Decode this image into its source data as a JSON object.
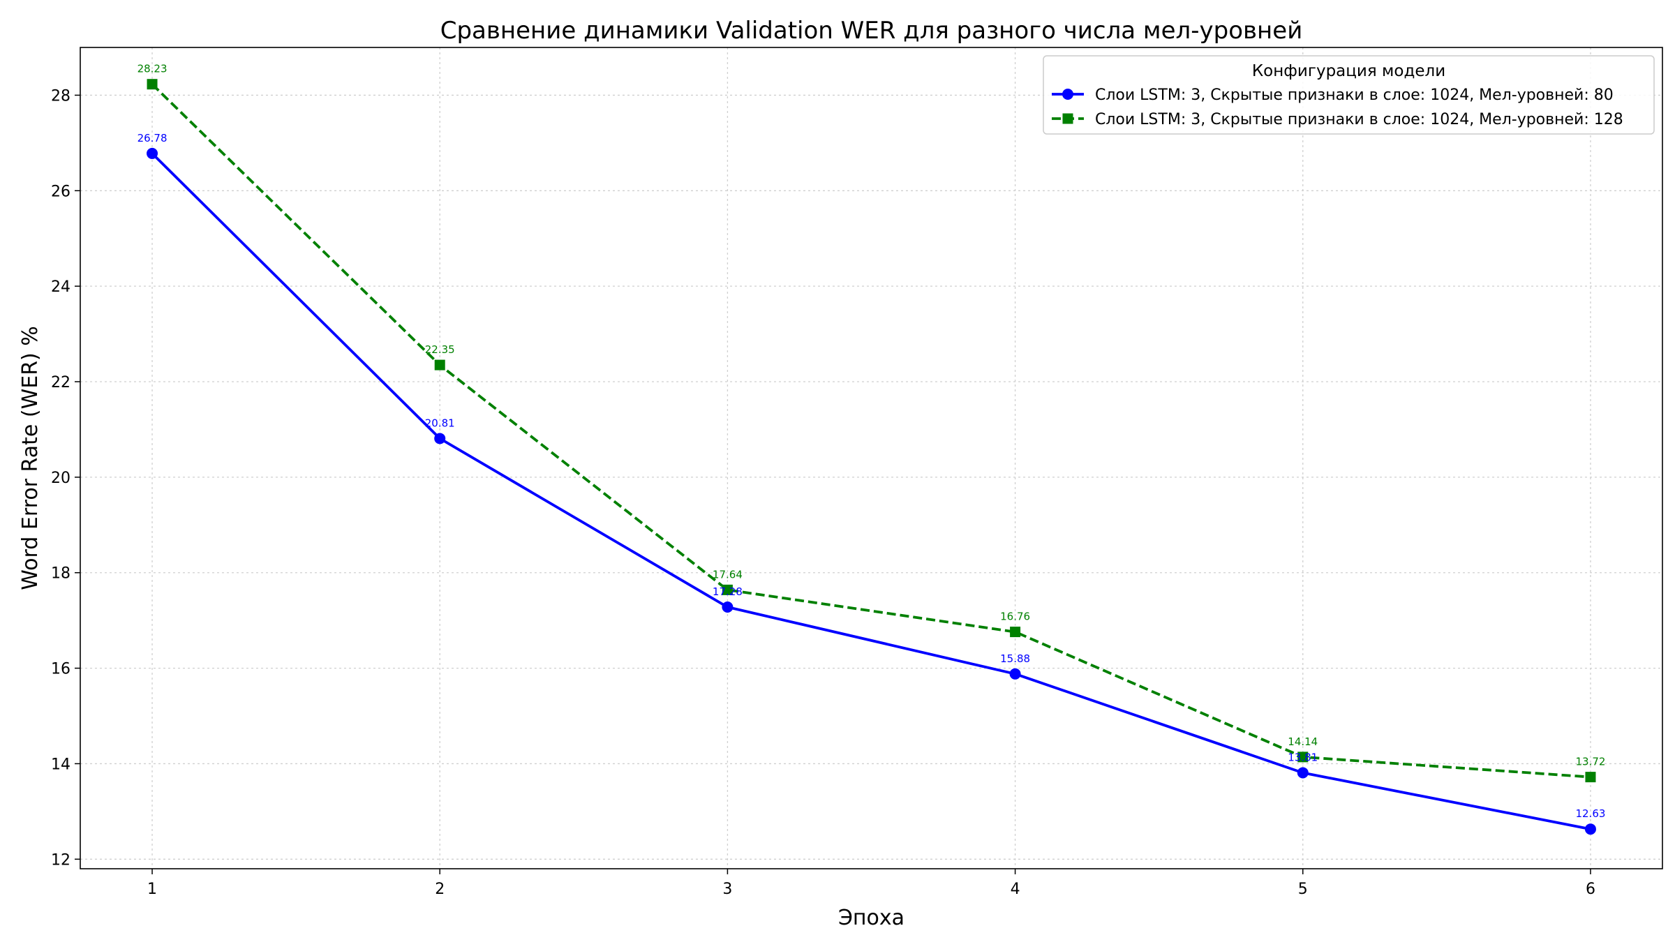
{
  "chart_data": {
    "type": "line",
    "title": "Сравнение динамики Validation WER для разного числа мел-уровней",
    "xlabel": "Эпоха",
    "ylabel": "Word Error Rate (WER) %",
    "x": [
      1,
      2,
      3,
      4,
      5,
      6
    ],
    "xlim": [
      0.75,
      6.25
    ],
    "ylim": [
      11.8,
      29.0
    ],
    "xticks": [
      1,
      2,
      3,
      4,
      5,
      6
    ],
    "yticks": [
      12,
      14,
      16,
      18,
      20,
      22,
      24,
      26,
      28
    ],
    "grid": true,
    "legend": {
      "title": "Конфигурация модели",
      "placement": "top-right"
    },
    "series": [
      {
        "name": "Слои LSTM: 3, Скрытые признаки в слое: 1024, Мел-уровней: 80",
        "values": [
          26.78,
          20.81,
          17.28,
          15.88,
          13.81,
          12.63
        ],
        "labels": [
          "26.78",
          "20.81",
          "17.28",
          "15.88",
          "13.81",
          "12.63"
        ],
        "color": "#0000ff",
        "line_style": "solid",
        "marker": "circle"
      },
      {
        "name": "Слои LSTM: 3, Скрытые признаки в слое: 1024, Мел-уровней: 128",
        "values": [
          28.23,
          22.35,
          17.64,
          16.76,
          14.14,
          13.72
        ],
        "labels": [
          "28.23",
          "22.35",
          "17.64",
          "16.76",
          "14.14",
          "13.72"
        ],
        "color": "#008000",
        "line_style": "dashed",
        "marker": "square"
      }
    ]
  }
}
